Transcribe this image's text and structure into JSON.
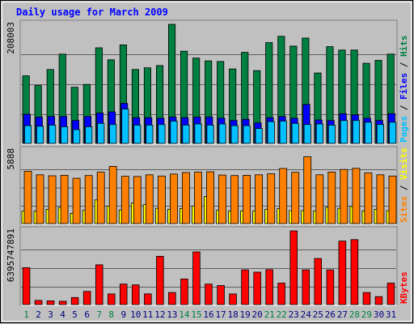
{
  "chart_data": {
    "type": "bar",
    "title": "Daily usage for March 2009",
    "categories": [
      "1",
      "2",
      "3",
      "4",
      "5",
      "6",
      "7",
      "8",
      "9",
      "10",
      "11",
      "12",
      "13",
      "14",
      "15",
      "16",
      "17",
      "18",
      "19",
      "20",
      "21",
      "22",
      "23",
      "24",
      "25",
      "26",
      "27",
      "28",
      "29",
      "30",
      "31"
    ],
    "weekend_days": [
      "1",
      "7",
      "8",
      "14",
      "15",
      "21",
      "22",
      "28",
      "29"
    ],
    "panels": [
      {
        "name": "hits-files-pages",
        "ymax": 208003,
        "ymax_label": "208003",
        "axis_legend": [
          {
            "text": "Pages",
            "color": "#00c0ff"
          },
          {
            "text": " / ",
            "color": "#000000"
          },
          {
            "text": "Files",
            "color": "#0000ff"
          },
          {
            "text": " / ",
            "color": "#000000"
          },
          {
            "text": "Hits",
            "color": "#008040"
          }
        ],
        "series": [
          {
            "name": "Hits",
            "color": "#008040",
            "values": [
              118000,
              101000,
              129000,
              156000,
              98000,
              103000,
              167000,
              146000,
              172000,
              129000,
              132000,
              136000,
              208000,
              161000,
              149000,
              144000,
              143000,
              130000,
              159000,
              127000,
              176000,
              187000,
              170000,
              184000,
              123000,
              169000,
              163000,
              163000,
              140000,
              145000,
              156000
            ]
          },
          {
            "name": "Files",
            "color": "#0000ff",
            "values": [
              51000,
              46000,
              47000,
              47000,
              40000,
              47000,
              53000,
              55000,
              70000,
              45000,
              45000,
              44000,
              46000,
              45000,
              46000,
              46000,
              44000,
              40000,
              42000,
              36000,
              45000,
              47000,
              44000,
              68000,
              41000,
              40000,
              52000,
              50000,
              44000,
              40000,
              52000
            ]
          },
          {
            "name": "Pages",
            "color": "#00c0ff",
            "values": [
              31000,
              30000,
              32000,
              29000,
              24000,
              29000,
              35000,
              33000,
              60000,
              32000,
              32000,
              33000,
              39000,
              32000,
              34000,
              32000,
              34000,
              31000,
              31000,
              26000,
              38000,
              39000,
              35000,
              33000,
              34000,
              32000,
              40000,
              40000,
              37000,
              33000,
              37000
            ]
          }
        ]
      },
      {
        "name": "visits-sites",
        "ymax": 5888,
        "ymax_label": "5888",
        "axis_legend": [
          {
            "text": "Sites",
            "color": "#ff8000"
          },
          {
            "text": " / ",
            "color": "#000000"
          },
          {
            "text": "Visits",
            "color": "#ffff00"
          }
        ],
        "series": [
          {
            "name": "Visits",
            "color": "#ffff00",
            "values": [
              1000,
              1000,
              1150,
              1300,
              820,
              1060,
              1910,
              1420,
              1100,
              1650,
              1530,
              1230,
              1150,
              1210,
              1420,
              2180,
              1070,
              1020,
              1030,
              1030,
              1150,
              1210,
              1050,
              1050,
              1020,
              1300,
              1230,
              1390,
              1020,
              1150,
              1040
            ]
          },
          {
            "name": "Sites",
            "color": "#ff8000",
            "values": [
              4220,
              3940,
              3860,
              3900,
              3660,
              3880,
              4150,
              4620,
              3820,
              3800,
              3940,
              3840,
              4000,
              4120,
              4150,
              4180,
              3920,
              3880,
              3900,
              3940,
              4020,
              4450,
              4140,
              5400,
              3940,
              4160,
              4370,
              4460,
              4090,
              3940,
              3840
            ]
          }
        ]
      },
      {
        "name": "kbytes",
        "ymax": 6395747891,
        "ymax_label": "6395747891",
        "axis_legend": [
          {
            "text": "KBytes",
            "color": "#ff0000"
          }
        ],
        "series": [
          {
            "name": "KBytes",
            "color": "#ff0000",
            "values": [
              3200000000,
              360000000,
              320000000,
              290000000,
              610000000,
              1140000000,
              3450000000,
              920000000,
              1780000000,
              1710000000,
              930000000,
              4190000000,
              1050000000,
              2220000000,
              4570000000,
              1780000000,
              1650000000,
              920000000,
              3010000000,
              2810000000,
              3030000000,
              1860000000,
              6395000000,
              3010000000,
              4000000000,
              3010000000,
              5510000000,
              5640000000,
              1050000000,
              690000000,
              1860000000
            ]
          }
        ]
      }
    ],
    "colors": {
      "background": "#c0c0c0",
      "plot_background": "#c0c0c0",
      "title": "#0000ff",
      "x_label": "#000080",
      "x_label_weekend": "#008040",
      "frame": "#000000"
    }
  }
}
